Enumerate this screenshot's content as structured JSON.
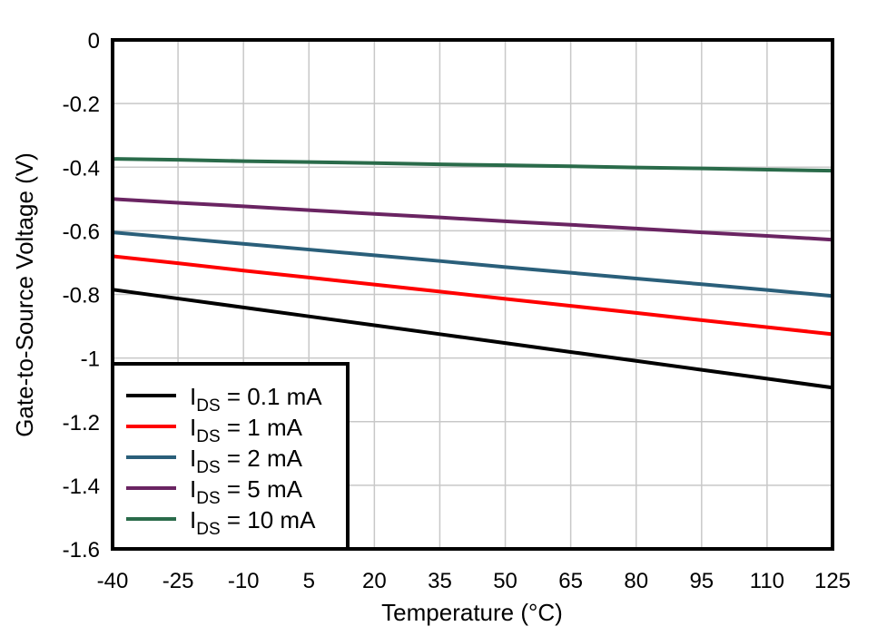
{
  "chart_data": {
    "type": "line",
    "title": "",
    "xlabel": "Temperature (°C)",
    "ylabel": "Gate-to-Source Voltage (V)",
    "xlim": [
      -40,
      125
    ],
    "ylim": [
      -1.6,
      0
    ],
    "x_ticks": [
      -40,
      -25,
      -10,
      5,
      20,
      35,
      50,
      65,
      80,
      95,
      110,
      125
    ],
    "x_tick_labels": [
      "-40",
      "-25",
      "-10",
      "5",
      "20",
      "35",
      "50",
      "65",
      "80",
      "95",
      "110",
      "125"
    ],
    "y_ticks": [
      0,
      -0.2,
      -0.4,
      -0.6,
      -0.8,
      -1,
      -1.2,
      -1.4,
      -1.6
    ],
    "y_tick_labels": [
      "0",
      "-0.2",
      "-0.4",
      "-0.6",
      "-0.8",
      "-1",
      "-1.2",
      "-1.4",
      "-1.6"
    ],
    "grid": true,
    "legend_position": "lower left",
    "x": [
      -40,
      -25,
      -10,
      5,
      20,
      35,
      50,
      65,
      80,
      95,
      110,
      125
    ],
    "series": [
      {
        "name": "I_DS = 0.1 mA",
        "label_main": "I",
        "label_sub": "DS",
        "label_rest": " = 0.1 mA",
        "color": "#000000",
        "values": [
          -0.785,
          -0.813,
          -0.841,
          -0.869,
          -0.897,
          -0.925,
          -0.953,
          -0.981,
          -1.009,
          -1.037,
          -1.065,
          -1.093
        ]
      },
      {
        "name": "I_DS = 1 mA",
        "label_main": "I",
        "label_sub": "DS",
        "label_rest": " = 1 mA",
        "color": "#ff0000",
        "values": [
          -0.68,
          -0.702,
          -0.725,
          -0.747,
          -0.769,
          -0.791,
          -0.814,
          -0.836,
          -0.858,
          -0.881,
          -0.903,
          -0.925
        ]
      },
      {
        "name": "I_DS = 2 mA",
        "label_main": "I",
        "label_sub": "DS",
        "label_rest": " = 2 mA",
        "color": "#2a5f7a",
        "values": [
          -0.605,
          -0.623,
          -0.641,
          -0.659,
          -0.677,
          -0.695,
          -0.714,
          -0.732,
          -0.75,
          -0.768,
          -0.786,
          -0.805
        ]
      },
      {
        "name": "I_DS = 5 mA",
        "label_main": "I",
        "label_sub": "DS",
        "label_rest": " = 5 mA",
        "color": "#6a2462",
        "values": [
          -0.5,
          -0.512,
          -0.523,
          -0.535,
          -0.547,
          -0.558,
          -0.57,
          -0.581,
          -0.593,
          -0.605,
          -0.616,
          -0.628
        ]
      },
      {
        "name": "I_DS = 10 mA",
        "label_main": "I",
        "label_sub": "DS",
        "label_rest": " = 10 mA",
        "color": "#2a6b4a",
        "values": [
          -0.374,
          -0.377,
          -0.381,
          -0.384,
          -0.387,
          -0.391,
          -0.394,
          -0.397,
          -0.401,
          -0.404,
          -0.408,
          -0.411
        ]
      }
    ]
  }
}
